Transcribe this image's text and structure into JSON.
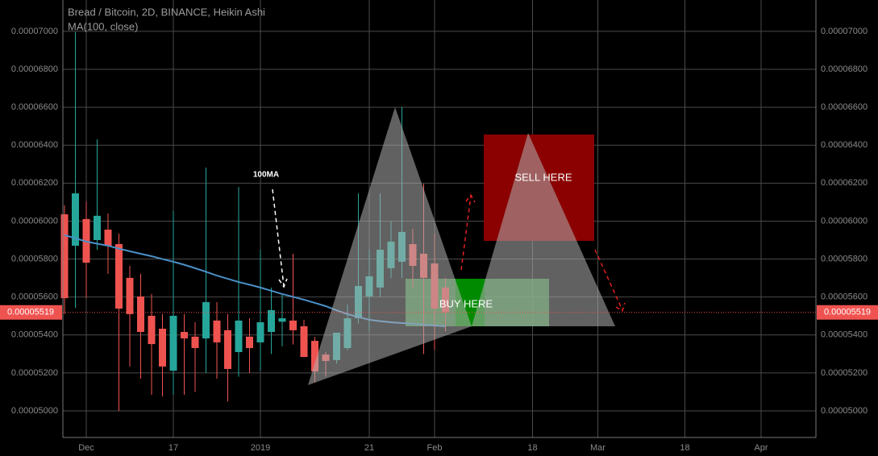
{
  "chart_data": {
    "type": "candlestick",
    "title": "Bread / Bitcoin, 2D, BINANCE, Heikin Ashi",
    "categories": [
      null,
      null,
      "Dec",
      null,
      null,
      null,
      null,
      null,
      null,
      null,
      "17",
      null,
      null,
      null,
      null,
      null,
      null,
      null,
      "2019",
      null,
      null,
      null,
      null,
      null,
      null,
      null,
      null,
      null,
      "21",
      null,
      null,
      null,
      null,
      null,
      "Feb",
      null,
      null,
      null,
      null,
      null,
      null,
      null,
      null,
      "18",
      null,
      null,
      null,
      null,
      null,
      "Mar",
      null,
      null,
      null,
      null,
      null,
      null,
      null,
      "18",
      null,
      null,
      null,
      null,
      null,
      null,
      "Apr",
      null,
      null,
      null
    ],
    "open": [
      6.036e-05,
      5.87e-05,
      6.011e-05,
      5.9e-05,
      5.955e-05,
      5.879e-05,
      5.701e-05,
      5.603e-05,
      5.501e-05,
      5.433e-05,
      5.212e-05,
      5.416e-05,
      5.391e-05,
      5.382e-05,
      5.476e-05,
      5.425e-05,
      5.31e-05,
      5.391e-05,
      5.361e-05,
      5.416e-05,
      5.47e-05,
      5.476e-05,
      5.446e-05,
      5.369e-05,
      5.297e-05,
      5.268e-05,
      5.331e-05,
      5.488e-05,
      5.603e-05,
      5.65e-05,
      5.752e-05,
      5.786e-05,
      5.879e-05,
      5.828e-05,
      5.777e-05,
      5.65e-05,
      null,
      null,
      null,
      null,
      null,
      null,
      null,
      null,
      null,
      null,
      null,
      null,
      null,
      null,
      null,
      null,
      null,
      null,
      null,
      null,
      null,
      null,
      null,
      null,
      null,
      null,
      null,
      null,
      null,
      null,
      null,
      null
    ],
    "high": [
      6.083e-05,
      6.996e-05,
      6.104e-05,
      6.431e-05,
      6.04e-05,
      5.934e-05,
      5.764e-05,
      5.722e-05,
      5.616e-05,
      5.51e-05,
      6.053e-05,
      5.51e-05,
      5.467e-05,
      6.282e-05,
      5.573e-05,
      5.51e-05,
      6.18e-05,
      5.488e-05,
      5.85e-05,
      5.65e-05,
      5.62e-05,
      5.828e-05,
      5.48e-05,
      5.39e-05,
      5.31e-05,
      5.4e-05,
      5.56e-05,
      6.146e-05,
      5.85e-05,
      6.146e-05,
      6e-05,
      6.601e-05,
      5.96e-05,
      6.197e-05,
      5.934e-05,
      5.7e-05,
      null,
      null,
      null,
      null,
      null,
      null,
      null,
      null,
      null,
      null,
      null,
      null,
      null,
      null,
      null,
      null,
      null,
      null,
      null,
      null,
      null,
      null,
      null,
      null,
      null,
      null,
      null,
      null,
      null,
      null,
      null,
      null
    ],
    "low": [
      5.51e-05,
      5.543e-05,
      5.594e-05,
      5.849e-05,
      5.722e-05,
      5e-05,
      5.234e-05,
      5.17e-05,
      5.085e-05,
      5.076e-05,
      5.085e-05,
      5.085e-05,
      5.1e-05,
      5.2e-05,
      5.17e-05,
      5.05e-05,
      5.18e-05,
      5.2e-05,
      5.21e-05,
      5.3e-05,
      5.34e-05,
      5.35e-05,
      5.284e-05,
      5.15e-05,
      5.18e-05,
      5.25e-05,
      5.32e-05,
      5.46e-05,
      5.42e-05,
      5.6e-05,
      5.7e-05,
      5.7e-05,
      5.65e-05,
      5.3e-05,
      5.32e-05,
      5.42e-05,
      null,
      null,
      null,
      null,
      null,
      null,
      null,
      null,
      null,
      null,
      null,
      null,
      null,
      null,
      null,
      null,
      null,
      null,
      null,
      null,
      null,
      null,
      null,
      null,
      null,
      null,
      null,
      null,
      null,
      null,
      null,
      null
    ],
    "close": [
      5.594e-05,
      6.146e-05,
      5.781e-05,
      6.028e-05,
      5.87e-05,
      5.539e-05,
      5.51e-05,
      5.416e-05,
      5.352e-05,
      5.234e-05,
      5.501e-05,
      5.382e-05,
      5.331e-05,
      5.573e-05,
      5.361e-05,
      5.221e-05,
      5.476e-05,
      5.331e-05,
      5.467e-05,
      5.531e-05,
      5.488e-05,
      5.425e-05,
      5.284e-05,
      5.208e-05,
      5.263e-05,
      5.412e-05,
      5.488e-05,
      5.658e-05,
      5.709e-05,
      5.849e-05,
      5.892e-05,
      5.943e-05,
      5.764e-05,
      5.701e-05,
      5.539e-05,
      5.519e-05,
      null,
      null,
      null,
      null,
      null,
      null,
      null,
      null,
      null,
      null,
      null,
      null,
      null,
      null,
      null,
      null,
      null,
      null,
      null,
      null,
      null,
      null,
      null,
      null,
      null,
      null,
      null,
      null,
      null,
      null,
      null,
      null
    ],
    "up_color": "#26a69a",
    "down_color": "#ef5350",
    "series": [
      {
        "name": "MA(100, close)",
        "color": "#4a90c8",
        "values": [
          5.926e-05,
          5.91e-05,
          5.892e-05,
          5.881e-05,
          5.87e-05,
          5.855e-05,
          5.841e-05,
          5.828e-05,
          5.815e-05,
          5.8e-05,
          5.786e-05,
          5.77e-05,
          5.752e-05,
          5.733e-05,
          5.713e-05,
          5.696e-05,
          5.679e-05,
          5.665e-05,
          5.65e-05,
          5.633e-05,
          5.616e-05,
          5.601e-05,
          5.586e-05,
          5.569e-05,
          5.552e-05,
          5.53e-05,
          5.51e-05,
          5.495e-05,
          5.48e-05,
          5.473e-05,
          5.467e-05,
          5.463e-05,
          5.459e-05,
          5.454e-05,
          5.45e-05,
          5.446e-05,
          null,
          null,
          null,
          null,
          null,
          null,
          null,
          null,
          null,
          null,
          null,
          null,
          null,
          null,
          null,
          null,
          null,
          null,
          null,
          null,
          null,
          null,
          null,
          null,
          null,
          null,
          null,
          null,
          null,
          null,
          null,
          null
        ]
      }
    ],
    "last_price": {
      "value": 5.519e-05,
      "label": "0.00005519",
      "color": "#ef5350"
    },
    "ylim": [
      4.86e-05,
      7.165e-05
    ],
    "yticks": [
      {
        "value": 5e-05,
        "label": "0.00005000"
      },
      {
        "value": 5.2e-05,
        "label": "0.00005200"
      },
      {
        "value": 5.4e-05,
        "label": "0.00005400"
      },
      {
        "value": 5.6e-05,
        "label": "0.00005600"
      },
      {
        "value": 5.8e-05,
        "label": "0.00005800"
      },
      {
        "value": 6e-05,
        "label": "0.00006000"
      },
      {
        "value": 6.2e-05,
        "label": "0.00006200"
      },
      {
        "value": 6.4e-05,
        "label": "0.00006400"
      },
      {
        "value": 6.6e-05,
        "label": "0.00006600"
      },
      {
        "value": 6.8e-05,
        "label": "0.00006800"
      },
      {
        "value": 7e-05,
        "label": "0.00007000"
      }
    ],
    "grid": true,
    "annotations": [
      "100MA",
      "SELL HERE",
      "BUY HERE"
    ]
  }
}
